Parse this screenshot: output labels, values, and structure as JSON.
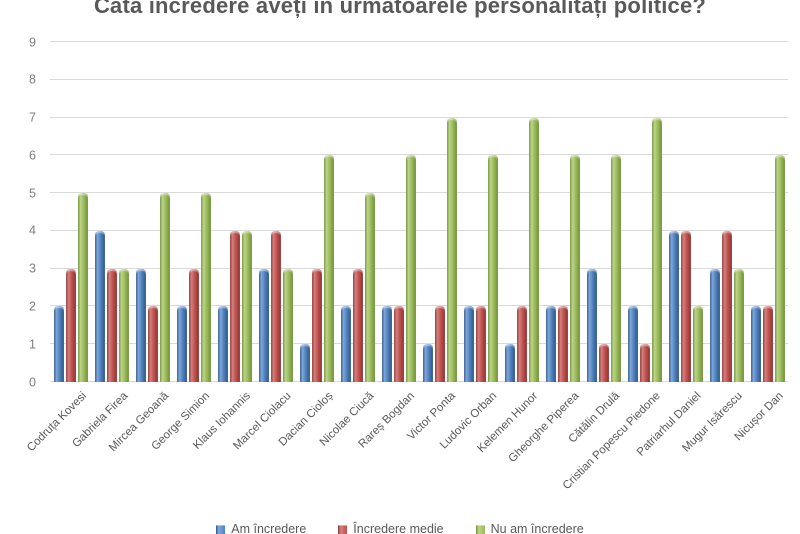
{
  "chart_data": {
    "type": "bar",
    "title": "Câtă încredere aveți în următoarele personalități politice?",
    "categories": [
      "Codruța Kovesi",
      "Gabriela Firea",
      "Mircea Geoană",
      "George Simion",
      "Klaus Iohannis",
      "Marcel Ciolacu",
      "Dacian Cioloș",
      "Nicolae Ciucă",
      "Rareș Bogdan",
      "Victor Ponta",
      "Ludovic Orban",
      "Kelemen Hunor",
      "Gheorghe Piperea",
      "Cătălin Drulă",
      "Cristian Popescu Piedone",
      "Patriarhul Daniel",
      "Mugur Isărescu",
      "Nicușor Dan"
    ],
    "series": [
      {
        "name": "Am încredere",
        "color": "#4f81bd",
        "color_light": "#7fa8dc",
        "color_dark": "#2f5684",
        "values": [
          2,
          4,
          3,
          2,
          2,
          3,
          1,
          2,
          2,
          1,
          2,
          1,
          2,
          3,
          2,
          4,
          3,
          2
        ]
      },
      {
        "name": "Încredere medie",
        "color": "#c0504d",
        "color_light": "#d3817e",
        "color_dark": "#8c3432",
        "values": [
          3,
          3,
          2,
          3,
          4,
          4,
          3,
          3,
          2,
          2,
          2,
          2,
          2,
          1,
          1,
          4,
          4,
          2
        ]
      },
      {
        "name": "Nu am încredere",
        "color": "#9bbb59",
        "color_light": "#bcd48a",
        "color_dark": "#6e8f3c",
        "values": [
          5,
          3,
          5,
          5,
          4,
          3,
          6,
          5,
          6,
          7,
          6,
          7,
          6,
          6,
          7,
          2,
          3,
          6
        ]
      }
    ],
    "ylim": [
      0,
      9
    ],
    "yticks": [
      0,
      1,
      2,
      3,
      4,
      5,
      6,
      7,
      8,
      9
    ],
    "xlabel": "",
    "ylabel": "",
    "grid": true,
    "legend_position": "bottom",
    "text_color": "#595959",
    "axis_label_color": "#7f7f7f",
    "grid_color": "#d9d9d9",
    "background_color": "#ffffff"
  }
}
